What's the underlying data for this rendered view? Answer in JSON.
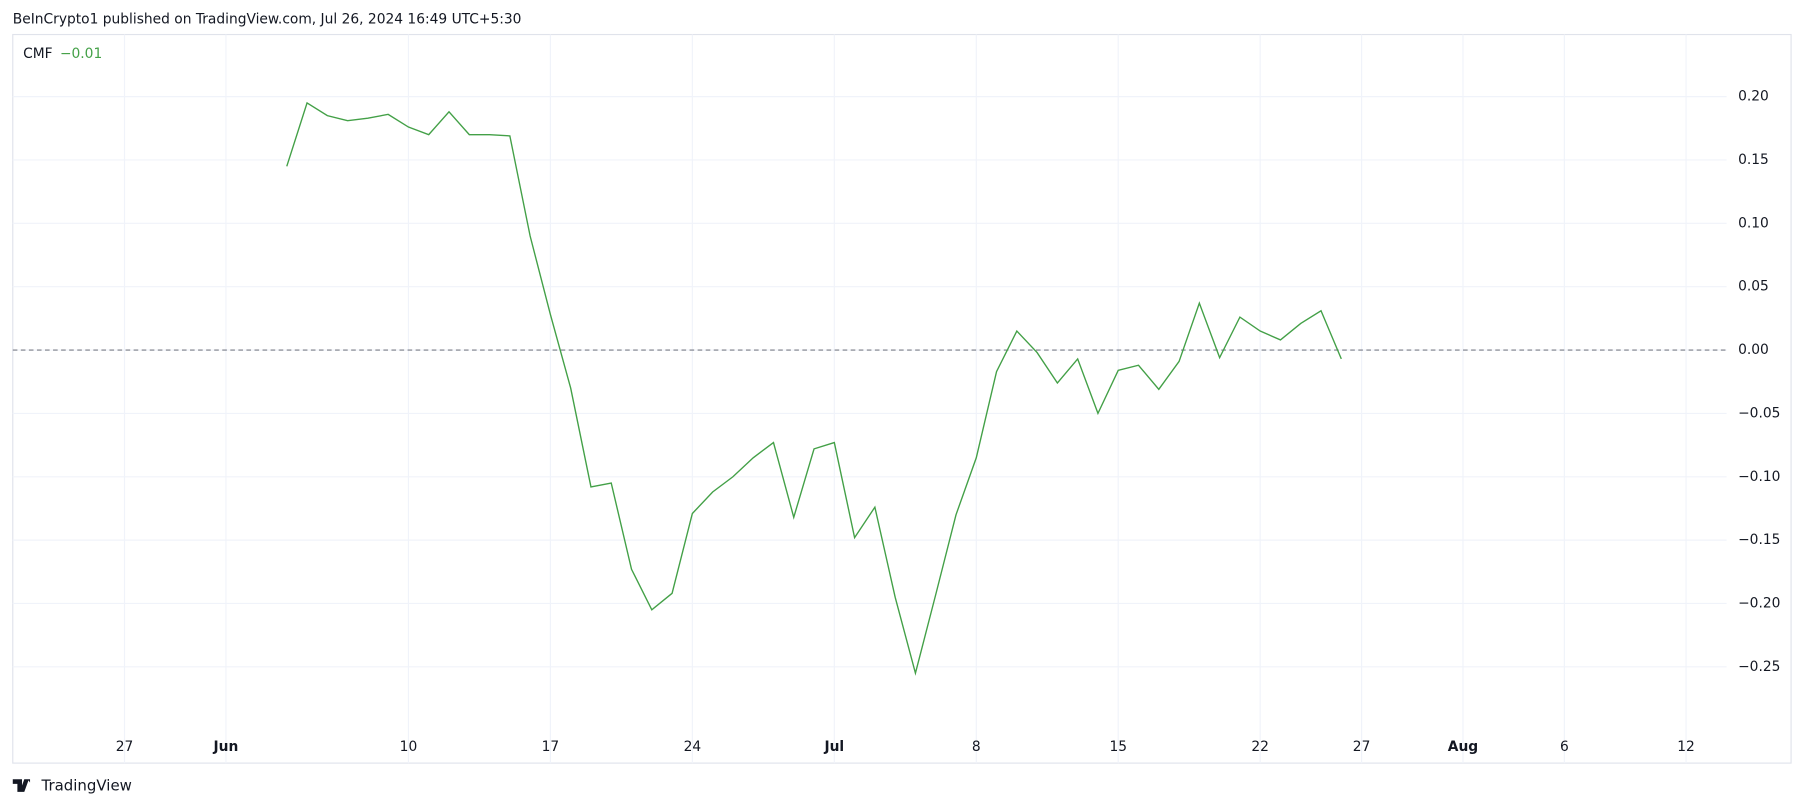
{
  "header": "BeInCrypto1 published on TradingView.com, Jul 26, 2024 16:49 UTC+5:30",
  "footer": "TradingView",
  "chart_data": {
    "type": "line",
    "last_value_label": "−0.01",
    "x": [
      "Jun 4",
      "Jun 5",
      "Jun 6",
      "Jun 7",
      "Jun 8",
      "Jun 9",
      "Jun 10",
      "Jun 11",
      "Jun 12",
      "Jun 13",
      "Jun 14",
      "Jun 15",
      "Jun 16",
      "Jun 17",
      "Jun 18",
      "Jun 19",
      "Jun 20",
      "Jun 21",
      "Jun 22",
      "Jun 23",
      "Jun 24",
      "Jun 25",
      "Jun 26",
      "Jun 27",
      "Jun 28",
      "Jun 29",
      "Jun 30",
      "Jul 1",
      "Jul 2",
      "Jul 3",
      "Jul 4",
      "Jul 5",
      "Jul 6",
      "Jul 7",
      "Jul 8",
      "Jul 9",
      "Jul 10",
      "Jul 11",
      "Jul 12",
      "Jul 13",
      "Jul 14",
      "Jul 15",
      "Jul 16",
      "Jul 17",
      "Jul 18",
      "Jul 19",
      "Jul 20",
      "Jul 21",
      "Jul 22",
      "Jul 23",
      "Jul 24",
      "Jul 25",
      "Jul 26"
    ],
    "series": [
      {
        "name": "CMF",
        "color": "#43a047",
        "values": [
          0.145,
          0.195,
          0.185,
          0.181,
          0.183,
          0.186,
          0.176,
          0.17,
          0.188,
          0.17,
          0.17,
          0.169,
          0.09,
          0.028,
          -0.03,
          -0.108,
          -0.105,
          -0.173,
          -0.205,
          -0.192,
          -0.129,
          -0.112,
          -0.1,
          -0.085,
          -0.073,
          -0.132,
          -0.078,
          -0.073,
          -0.148,
          -0.124,
          -0.195,
          -0.255,
          -0.193,
          -0.13,
          -0.085,
          -0.017,
          0.015,
          -0.002,
          -0.026,
          -0.007,
          -0.05,
          -0.016,
          -0.012,
          -0.031,
          -0.009,
          0.037,
          -0.006,
          0.026,
          0.015,
          0.008,
          0.021,
          0.031,
          -0.007
        ]
      }
    ],
    "xlim": [
      "May 22",
      "Aug 14"
    ],
    "xticks": [
      {
        "value": "May 27",
        "label": "27"
      },
      {
        "value": "Jun 1",
        "label": "Jun"
      },
      {
        "value": "Jun 10",
        "label": "10"
      },
      {
        "value": "Jun 17",
        "label": "17"
      },
      {
        "value": "Jun 24",
        "label": "24"
      },
      {
        "value": "Jul 1",
        "label": "Jul"
      },
      {
        "value": "Jul 8",
        "label": "8"
      },
      {
        "value": "Jul 15",
        "label": "15"
      },
      {
        "value": "Jul 22",
        "label": "22"
      },
      {
        "value": "Jul 27",
        "label": "27"
      },
      {
        "value": "Aug 1",
        "label": "Aug"
      },
      {
        "value": "Aug 6",
        "label": "6"
      },
      {
        "value": "Aug 12",
        "label": "12"
      }
    ],
    "ylim": [
      -0.296,
      0.249
    ],
    "yticks": [
      {
        "value": -0.25,
        "label": "−0.25"
      },
      {
        "value": -0.2,
        "label": "−0.20"
      },
      {
        "value": -0.15,
        "label": "−0.15"
      },
      {
        "value": -0.1,
        "label": "−0.10"
      },
      {
        "value": -0.05,
        "label": "−0.05"
      },
      {
        "value": 0,
        "label": "0.00"
      },
      {
        "value": 0.05,
        "label": "0.05"
      },
      {
        "value": 0.1,
        "label": "0.10"
      },
      {
        "value": 0.15,
        "label": "0.15"
      },
      {
        "value": 0.2,
        "label": "0.20"
      }
    ],
    "zero_line": 0,
    "grid": true
  }
}
